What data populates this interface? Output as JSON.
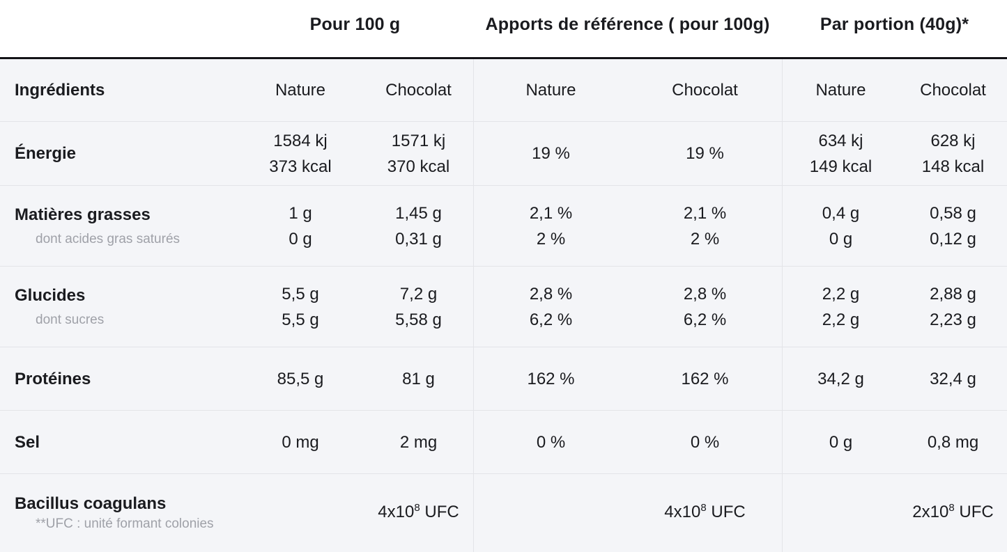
{
  "colors": {
    "body_background": "#f4f5f8",
    "header_background": "#ffffff",
    "heavy_rule": "#131317",
    "divider": "#e3e4e8",
    "text": "#1a1b1f",
    "muted_text": "#9fa1a8"
  },
  "table": {
    "column_groups": [
      {
        "label": "Pour 100 g"
      },
      {
        "label": "Apports de référence ( pour 100g)"
      },
      {
        "label": "Par portion (40g)*"
      }
    ],
    "corner_label": "Ingrédients",
    "flavor_columns": [
      "Nature",
      "Chocolat",
      "Nature",
      "Chocolat",
      "Nature",
      "Chocolat"
    ],
    "rows": [
      {
        "label": "Énergie",
        "cells": [
          {
            "l1": "1584 kj",
            "l2": "373 kcal"
          },
          {
            "l1": "1571 kj",
            "l2": "370 kcal"
          },
          {
            "l1": "19 %"
          },
          {
            "l1": "19 %"
          },
          {
            "l1": "634 kj",
            "l2": "149 kcal"
          },
          {
            "l1": "628 kj",
            "l2": "148 kcal"
          }
        ]
      },
      {
        "label": "Matières grasses",
        "sublabel": "dont acides gras saturés",
        "cells": [
          {
            "l1": "1 g",
            "l2": "0 g"
          },
          {
            "l1": "1,45 g",
            "l2": "0,31 g"
          },
          {
            "l1": "2,1 %",
            "l2": "2 %"
          },
          {
            "l1": "2,1 %",
            "l2": "2 %"
          },
          {
            "l1": "0,4 g",
            "l2": "0 g"
          },
          {
            "l1": "0,58 g",
            "l2": "0,12 g"
          }
        ]
      },
      {
        "label": "Glucides",
        "sublabel": "dont sucres",
        "cells": [
          {
            "l1": "5,5 g",
            "l2": "5,5 g"
          },
          {
            "l1": "7,2 g",
            "l2": "5,58 g"
          },
          {
            "l1": "2,8 %",
            "l2": "6,2 %"
          },
          {
            "l1": "2,8 %",
            "l2": "6,2 %"
          },
          {
            "l1": "2,2 g",
            "l2": "2,2 g"
          },
          {
            "l1": "2,88 g",
            "l2": "2,23 g"
          }
        ]
      },
      {
        "label": "Protéines",
        "cells": [
          {
            "l1": "85,5 g"
          },
          {
            "l1": "81 g"
          },
          {
            "l1": "162 %"
          },
          {
            "l1": "162 %"
          },
          {
            "l1": "34,2 g"
          },
          {
            "l1": "32,4 g"
          }
        ]
      },
      {
        "label": "Sel",
        "cells": [
          {
            "l1": "0 mg"
          },
          {
            "l1": "2 mg"
          },
          {
            "l1": "0 %"
          },
          {
            "l1": "0 %"
          },
          {
            "l1": "0 g"
          },
          {
            "l1": "0,8 mg"
          }
        ]
      },
      {
        "label": "Bacillus coagulans",
        "sublabel": "**UFC : unité formant colonies",
        "cells_sup": [
          {
            "base": "4x10",
            "sup": "8",
            "unit": " UFC"
          },
          {
            "base": "4x10",
            "sup": "8",
            "unit": " UFC"
          },
          {
            "base": "2x10",
            "sup": "8",
            "unit": " UFC"
          }
        ]
      }
    ]
  }
}
